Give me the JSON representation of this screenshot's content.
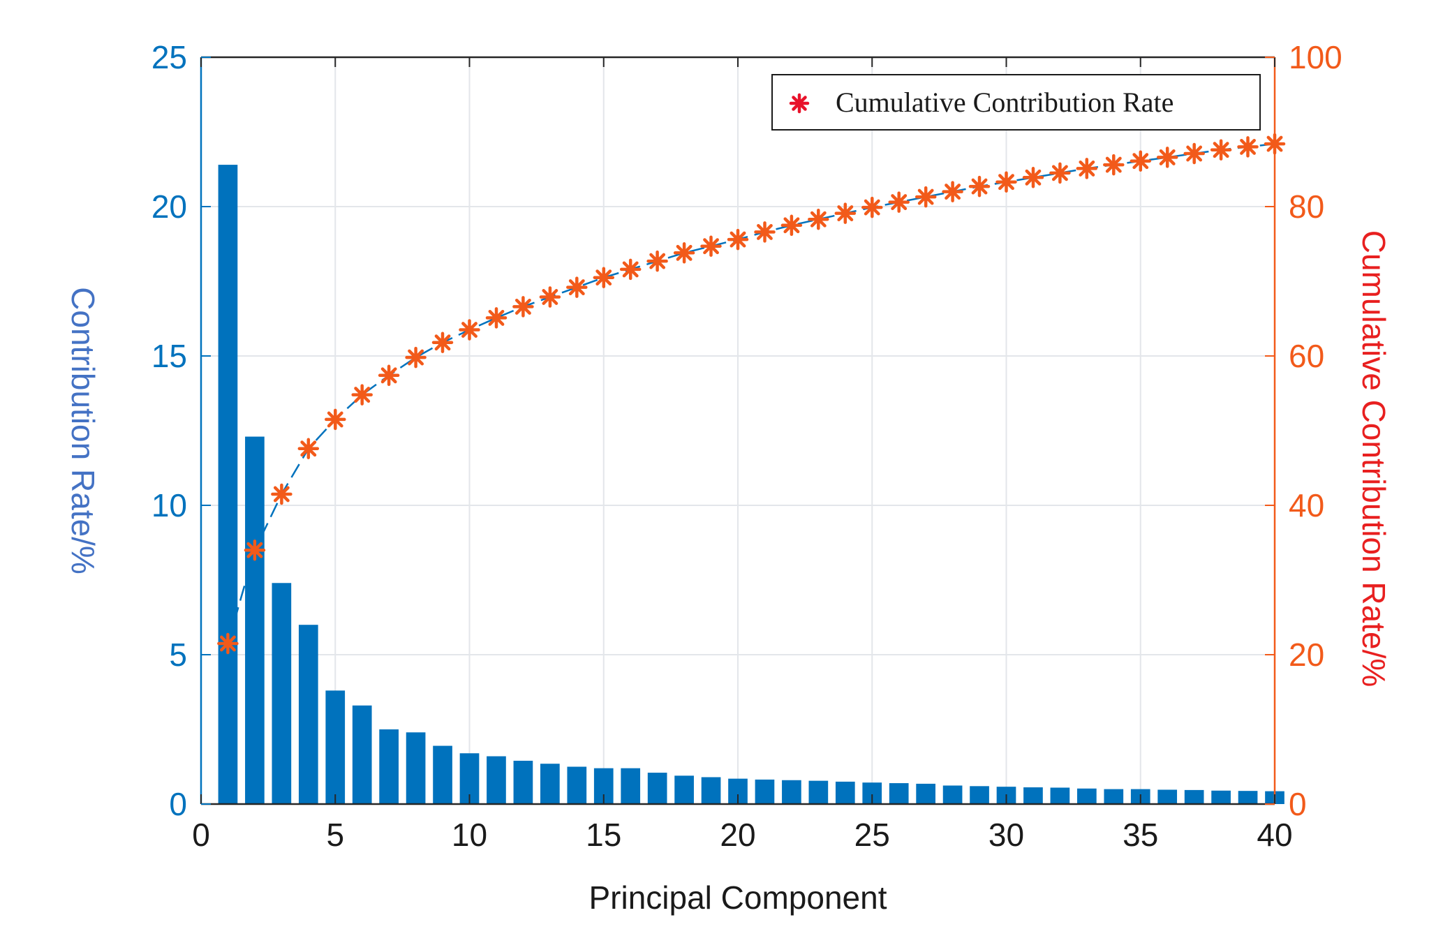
{
  "chart_data": {
    "type": "bar",
    "x": [
      1,
      2,
      3,
      4,
      5,
      6,
      7,
      8,
      9,
      10,
      11,
      12,
      13,
      14,
      15,
      16,
      17,
      18,
      19,
      20,
      21,
      22,
      23,
      24,
      25,
      26,
      27,
      28,
      29,
      30,
      31,
      32,
      33,
      34,
      35,
      36,
      37,
      38,
      39,
      40
    ],
    "series": [
      {
        "axis": "left",
        "type": "bar",
        "values": [
          21.4,
          12.3,
          7.4,
          6.0,
          3.8,
          3.3,
          2.5,
          2.4,
          1.95,
          1.7,
          1.6,
          1.45,
          1.35,
          1.25,
          1.2,
          1.2,
          1.05,
          0.95,
          0.9,
          0.85,
          0.82,
          0.8,
          0.78,
          0.75,
          0.72,
          0.7,
          0.68,
          0.62,
          0.6,
          0.58,
          0.56,
          0.55,
          0.52,
          0.5,
          0.5,
          0.48,
          0.47,
          0.45,
          0.44,
          0.43
        ]
      },
      {
        "name": "Cumulative Contribution Rate",
        "axis": "right",
        "type": "line+scatter",
        "marker": "asterisk",
        "line_style": "dashed",
        "values": [
          21.5,
          34.0,
          41.5,
          47.6,
          51.5,
          54.8,
          57.4,
          59.8,
          61.8,
          63.5,
          65.1,
          66.6,
          67.9,
          69.2,
          70.5,
          71.6,
          72.7,
          73.8,
          74.7,
          75.6,
          76.6,
          77.5,
          78.3,
          79.1,
          79.9,
          80.6,
          81.3,
          82.0,
          82.7,
          83.3,
          83.9,
          84.5,
          85.1,
          85.6,
          86.1,
          86.6,
          87.1,
          87.6,
          88.0,
          88.4
        ]
      }
    ],
    "xlabel": "Principal Component",
    "ylabel": "Contribution Rate/%",
    "y2label": "Cumulative Contribution Rate/%",
    "xlim": [
      0,
      40
    ],
    "ylim": [
      0,
      25
    ],
    "y2lim": [
      0,
      100
    ],
    "xticks": [
      "0",
      "5",
      "10",
      "15",
      "20",
      "25",
      "30",
      "35",
      "40"
    ],
    "yticks": [
      "0",
      "5",
      "10",
      "15",
      "20",
      "25"
    ],
    "y2ticks": [
      "0",
      "20",
      "40",
      "60",
      "80",
      "100"
    ],
    "grid": true,
    "legend_position": "top-right",
    "colors": {
      "bar": "#0072BD",
      "left_axis": "#0072BD",
      "left_label": "#4472C4",
      "right_axis": "#F25A1A",
      "right_label": "#E81F1F",
      "markers": "#F25A1A",
      "line": "#0072BD",
      "legend_marker": "#E8122A",
      "grid": "#E3E6EA"
    }
  }
}
